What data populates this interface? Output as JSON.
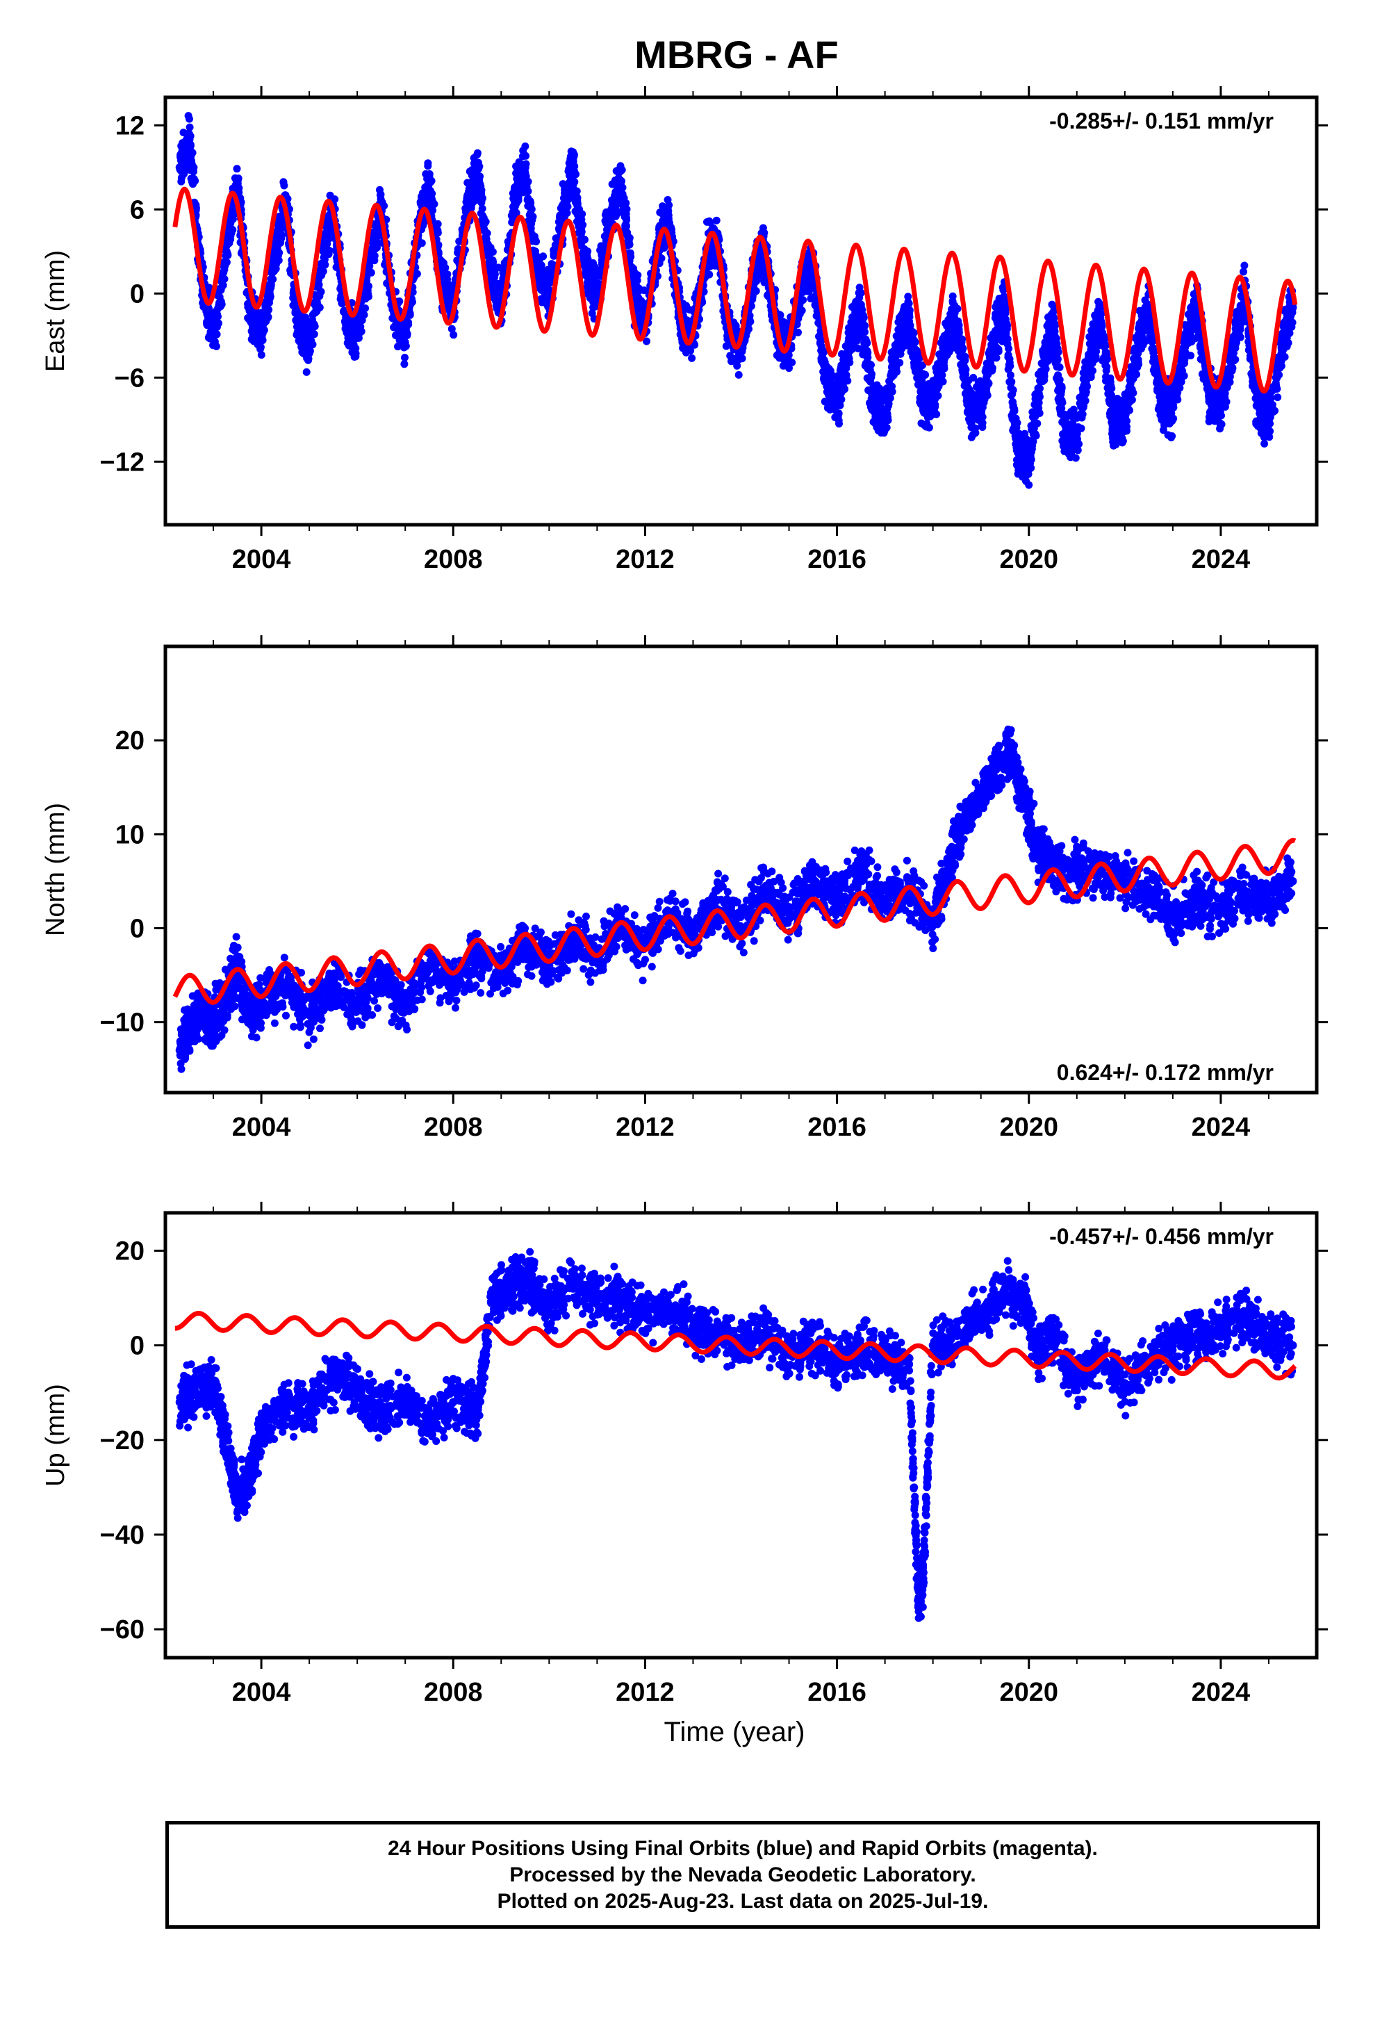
{
  "title": "MBRG - AF",
  "xlabel": "Time (year)",
  "footer": {
    "line1": "24 Hour Positions Using Final Orbits (blue) and Rapid Orbits (magenta).",
    "line2": "Processed by the Nevada Geodetic Laboratory.",
    "line3": "Plotted on 2025-Aug-23. Last data on 2025-Jul-19."
  },
  "colors": {
    "data": "#0000ff",
    "model": "#ff0000",
    "axis": "#000000"
  },
  "chart_data": [
    {
      "type": "scatter",
      "name": "east",
      "ylabel": "East (mm)",
      "rate_label": "-0.285+/- 0.151 mm/yr",
      "xlim": [
        2002.0,
        2026.0
      ],
      "ylim": [
        -16.5,
        14.0
      ],
      "xticks": [
        "2004",
        "2008",
        "2012",
        "2016",
        "2020",
        "2024"
      ],
      "yticks": [
        "12",
        "6",
        "0",
        "-6",
        "-12"
      ],
      "data_series": {
        "name": "24 hour positions",
        "x": [
          2002.3,
          2002.5,
          2002.75,
          2003.0,
          2003.3,
          2003.5,
          2003.75,
          2004.0,
          2004.3,
          2004.5,
          2004.75,
          2005.0,
          2005.3,
          2005.5,
          2005.75,
          2006.0,
          2006.3,
          2006.5,
          2006.75,
          2007.0,
          2007.3,
          2007.5,
          2007.75,
          2008.0,
          2008.3,
          2008.5,
          2008.75,
          2009.0,
          2009.3,
          2009.5,
          2009.75,
          2010.0,
          2010.3,
          2010.5,
          2010.75,
          2011.0,
          2011.3,
          2011.5,
          2011.75,
          2012.0,
          2012.3,
          2012.5,
          2012.75,
          2013.0,
          2013.3,
          2013.5,
          2013.75,
          2014.0,
          2014.3,
          2014.5,
          2014.75,
          2015.0,
          2015.3,
          2015.5,
          2015.75,
          2016.0,
          2016.3,
          2016.5,
          2016.75,
          2017.0,
          2017.3,
          2017.5,
          2017.75,
          2018.0,
          2018.3,
          2018.5,
          2018.75,
          2019.0,
          2019.3,
          2019.5,
          2019.75,
          2020.0,
          2020.3,
          2020.5,
          2020.75,
          2021.0,
          2021.3,
          2021.5,
          2021.75,
          2022.0,
          2022.3,
          2022.5,
          2022.75,
          2023.0,
          2023.3,
          2023.5,
          2023.75,
          2024.0,
          2024.3,
          2024.5,
          2024.75,
          2025.0,
          2025.3,
          2025.5
        ],
        "y": [
          9,
          11,
          1,
          -3,
          4,
          8,
          -1,
          -3,
          3,
          7,
          -2,
          -4,
          3,
          6,
          -2,
          -3,
          3,
          6,
          -1,
          -3,
          5,
          8,
          1,
          -1,
          6,
          9,
          2,
          -1,
          7,
          9,
          1,
          0,
          6,
          9,
          2,
          0,
          6,
          8,
          0,
          -2,
          4,
          5,
          -2,
          -3,
          3,
          4,
          -3,
          -4,
          2,
          3,
          -3,
          -4,
          1,
          2,
          -6,
          -8,
          -3,
          -1,
          -8,
          -9,
          -3,
          -2,
          -7,
          -8,
          -3,
          -2,
          -8,
          -8,
          -3,
          -1,
          -11,
          -12,
          -5,
          -2,
          -10,
          -10,
          -4,
          -2,
          -9,
          -9,
          -3,
          -1,
          -8,
          -8,
          -3,
          -1,
          -7,
          -8,
          -3,
          0,
          -8,
          -9,
          -3,
          -1
        ]
      },
      "model_series": {
        "name": "model fit",
        "mean": 3.5,
        "rate": -0.285,
        "amplitude": 4.0,
        "phase_year": 2002.4,
        "t0": 2002.2
      }
    },
    {
      "type": "scatter",
      "name": "north",
      "ylabel": "North (mm)",
      "rate_label": "0.624+/- 0.172 mm/yr",
      "xlim": [
        2002.0,
        2026.0
      ],
      "ylim": [
        -17.5,
        30.0
      ],
      "xticks": [
        "2004",
        "2008",
        "2012",
        "2016",
        "2020",
        "2024"
      ],
      "yticks": [
        "20",
        "10",
        "0",
        "-10"
      ],
      "data_series": {
        "name": "24 hour positions",
        "x": [
          2002.3,
          2002.5,
          2002.75,
          2003.0,
          2003.3,
          2003.5,
          2003.75,
          2004.0,
          2004.5,
          2005.0,
          2005.5,
          2006.0,
          2006.5,
          2007.0,
          2007.5,
          2008.0,
          2008.5,
          2009.0,
          2009.5,
          2010.0,
          2010.5,
          2011.0,
          2011.5,
          2012.0,
          2012.5,
          2013.0,
          2013.5,
          2014.0,
          2014.5,
          2015.0,
          2015.5,
          2016.0,
          2016.5,
          2017.0,
          2017.5,
          2018.0,
          2018.3,
          2018.6,
          2019.0,
          2019.3,
          2019.6,
          2019.9,
          2020.2,
          2020.5,
          2021.0,
          2021.5,
          2022.0,
          2022.5,
          2023.0,
          2023.5,
          2024.0,
          2024.5,
          2025.0,
          2025.5
        ],
        "y": [
          -13,
          -11,
          -9,
          -10,
          -7,
          -4,
          -9,
          -8,
          -6,
          -9,
          -6,
          -8,
          -5,
          -8,
          -4,
          -6,
          -3,
          -5,
          -2,
          -4,
          -1,
          -3,
          0,
          -2,
          1,
          -1,
          3,
          0,
          4,
          1,
          5,
          3,
          6,
          3,
          4,
          1,
          6,
          11,
          14,
          17,
          19,
          14,
          8,
          7,
          6,
          6,
          5,
          4,
          1,
          3,
          2,
          4,
          3,
          5
        ]
      },
      "model_series": {
        "name": "model fit",
        "mean": -6.8,
        "rate": 0.624,
        "amplitude": 1.6,
        "phase_year": 2002.5,
        "t0": 2002.2
      }
    },
    {
      "type": "scatter",
      "name": "up",
      "ylabel": "Up (mm)",
      "rate_label": "-0.457+/- 0.456 mm/yr",
      "xlim": [
        2002.0,
        2026.0
      ],
      "ylim": [
        -66.0,
        28.0
      ],
      "xticks": [
        "2004",
        "2008",
        "2012",
        "2016",
        "2020",
        "2024"
      ],
      "yticks": [
        "20",
        "0",
        "-20",
        "-40",
        "-60"
      ],
      "data_series": {
        "name": "24 hour positions",
        "x": [
          2002.3,
          2002.6,
          2003.0,
          2003.3,
          2003.5,
          2003.75,
          2004.0,
          2004.5,
          2005.0,
          2005.5,
          2006.0,
          2006.5,
          2007.0,
          2007.5,
          2008.0,
          2008.5,
          2008.8,
          2009.2,
          2009.6,
          2010.0,
          2010.5,
          2011.0,
          2011.5,
          2012.0,
          2012.5,
          2013.0,
          2013.5,
          2014.0,
          2014.5,
          2015.0,
          2015.5,
          2016.0,
          2016.5,
          2017.0,
          2017.5,
          2017.7,
          2017.8,
          2018.0,
          2018.5,
          2019.0,
          2019.5,
          2019.9,
          2020.2,
          2020.5,
          2021.0,
          2021.5,
          2022.0,
          2022.5,
          2023.0,
          2023.5,
          2024.0,
          2024.5,
          2025.0,
          2025.5
        ],
        "y": [
          -12,
          -10,
          -8,
          -22,
          -32,
          -28,
          -18,
          -12,
          -14,
          -6,
          -10,
          -14,
          -12,
          -16,
          -12,
          -14,
          10,
          12,
          14,
          8,
          12,
          10,
          9,
          6,
          8,
          4,
          2,
          0,
          2,
          -2,
          0,
          -4,
          0,
          -2,
          -4,
          -55,
          -48,
          0,
          2,
          6,
          12,
          10,
          -2,
          2,
          -8,
          -2,
          -8,
          -4,
          0,
          2,
          4,
          6,
          2,
          0
        ]
      },
      "model_series": {
        "name": "model fit",
        "mean": 5.3,
        "rate": -0.457,
        "amplitude": 1.7,
        "phase_year": 2002.7,
        "t0": 2002.2
      }
    }
  ]
}
